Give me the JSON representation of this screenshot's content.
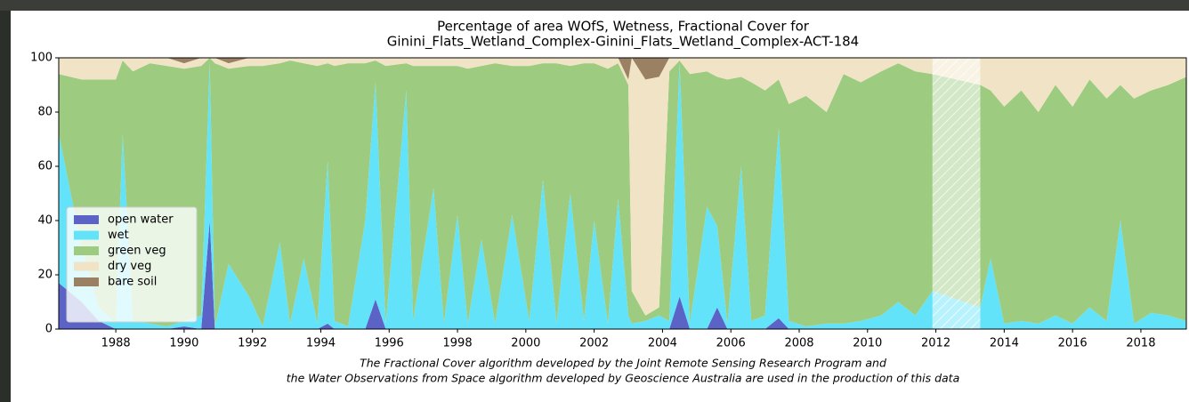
{
  "chart_data": {
    "type": "stacked_area",
    "title_lines": [
      "Percentage of area WOfS, Wetness, Fractional Cover for",
      "Ginini_Flats_Wetland_Complex-Ginini_Flats_Wetland_Complex-ACT-184"
    ],
    "note_lines": [
      "The Fractional Cover algorithm developed by the Joint Remote Sensing Research Program and",
      "the Water Observations from Space algorithm developed by Geoscience Australia are used in the production of this data"
    ],
    "x": [
      1986.33,
      1987.0,
      1987.5,
      1988.0,
      1988.2,
      1988.5,
      1989.0,
      1989.5,
      1990.0,
      1990.5,
      1990.75,
      1990.9,
      1991.3,
      1991.9,
      1992.3,
      1992.8,
      1993.1,
      1993.5,
      1993.9,
      1994.2,
      1994.4,
      1994.8,
      1995.3,
      1995.6,
      1995.9,
      1996.5,
      1996.7,
      1997.3,
      1997.6,
      1998.0,
      1998.3,
      1998.7,
      1999.1,
      1999.6,
      2000.1,
      2000.5,
      2000.9,
      2001.3,
      2001.7,
      2002.0,
      2002.4,
      2002.7,
      2003.0,
      2003.1,
      2003.5,
      2003.9,
      2004.2,
      2004.5,
      2004.8,
      2005.3,
      2005.6,
      2005.9,
      2006.3,
      2006.6,
      2007.0,
      2007.4,
      2007.7,
      2008.2,
      2008.8,
      2009.3,
      2009.8,
      2010.4,
      2010.9,
      2011.4,
      2011.9,
      2013.3,
      2013.6,
      2014.0,
      2014.5,
      2015.0,
      2015.5,
      2016.0,
      2016.5,
      2017.0,
      2017.4,
      2017.8,
      2018.3,
      2018.8,
      2019.33
    ],
    "series": [
      {
        "name": "open water",
        "color": "#5b63c6",
        "values": [
          17,
          10,
          3,
          0,
          0,
          0,
          0,
          0,
          1,
          0,
          40,
          0,
          0,
          0,
          0,
          0,
          0,
          0,
          0,
          2,
          0,
          0,
          0,
          11,
          0,
          0,
          0,
          0,
          0,
          0,
          0,
          0,
          0,
          0,
          0,
          0,
          0,
          0,
          0,
          0,
          0,
          0,
          0,
          0,
          0,
          0,
          0,
          12,
          0,
          0,
          8,
          0,
          0,
          0,
          0,
          4,
          0,
          0,
          0,
          0,
          0,
          0,
          0,
          0,
          0,
          0,
          0,
          0,
          0,
          0,
          0,
          0,
          0,
          0,
          0,
          0,
          0,
          0,
          0
        ]
      },
      {
        "name": "wet",
        "color": "#63e3fa",
        "values": [
          55,
          20,
          5,
          2,
          72,
          3,
          2,
          1,
          2,
          5,
          58,
          1,
          24,
          12,
          1,
          32,
          2,
          26,
          2,
          60,
          3,
          1,
          40,
          80,
          2,
          88,
          3,
          52,
          2,
          42,
          2,
          33,
          2,
          42,
          3,
          55,
          2,
          50,
          3,
          40,
          2,
          48,
          5,
          2,
          3,
          5,
          3,
          86,
          2,
          45,
          30,
          2,
          60,
          3,
          5,
          70,
          3,
          1,
          2,
          2,
          3,
          5,
          10,
          5,
          14,
          8,
          26,
          2,
          3,
          2,
          5,
          2,
          8,
          3,
          40,
          2,
          6,
          5,
          3
        ]
      },
      {
        "name": "green veg",
        "color": "#9dcc80",
        "values": [
          22,
          62,
          84,
          90,
          27,
          92,
          96,
          96,
          93,
          92,
          2,
          97,
          72,
          85,
          96,
          66,
          97,
          72,
          95,
          36,
          94,
          97,
          58,
          8,
          95,
          10,
          94,
          45,
          95,
          55,
          94,
          64,
          96,
          55,
          94,
          43,
          96,
          47,
          95,
          58,
          94,
          50,
          85,
          12,
          2,
          3,
          92,
          1,
          92,
          50,
          55,
          90,
          33,
          88,
          83,
          18,
          80,
          85,
          78,
          92,
          88,
          90,
          88,
          90,
          80,
          82,
          62,
          80,
          85,
          78,
          85,
          80,
          84,
          82,
          50,
          83,
          82,
          85,
          90
        ]
      },
      {
        "name": "dry veg",
        "color": "#f1e4c6",
        "values": [
          6,
          8,
          8,
          8,
          1,
          5,
          2,
          3,
          2,
          3,
          0,
          2,
          2,
          3,
          3,
          2,
          1,
          2,
          3,
          2,
          3,
          2,
          2,
          1,
          3,
          2,
          3,
          3,
          3,
          3,
          4,
          3,
          2,
          3,
          3,
          2,
          2,
          3,
          2,
          2,
          4,
          2,
          2,
          86,
          87,
          85,
          5,
          1,
          6,
          5,
          7,
          8,
          7,
          9,
          12,
          8,
          17,
          14,
          20,
          6,
          9,
          5,
          2,
          5,
          6,
          10,
          12,
          18,
          12,
          20,
          10,
          18,
          8,
          15,
          10,
          15,
          12,
          10,
          7
        ]
      },
      {
        "name": "bare soil",
        "color": "#9a8163",
        "values": [
          0,
          0,
          0,
          0,
          0,
          0,
          0,
          0,
          2,
          0,
          0,
          0,
          2,
          0,
          0,
          0,
          0,
          0,
          0,
          0,
          0,
          0,
          0,
          0,
          0,
          0,
          0,
          0,
          0,
          0,
          0,
          0,
          0,
          0,
          0,
          0,
          0,
          0,
          0,
          0,
          0,
          0,
          8,
          0,
          8,
          7,
          0,
          0,
          0,
          0,
          0,
          0,
          0,
          0,
          0,
          0,
          0,
          0,
          0,
          0,
          0,
          0,
          0,
          0,
          0,
          0,
          0,
          0,
          0,
          0,
          0,
          0,
          0,
          0,
          0,
          0,
          0,
          0,
          0
        ]
      }
    ],
    "shaded_span": [
      2011.9,
      2013.3
    ],
    "xlim": [
      1986.33,
      2019.33
    ],
    "xticks": [
      1988,
      1990,
      1992,
      1994,
      1996,
      1998,
      2000,
      2002,
      2004,
      2006,
      2008,
      2010,
      2012,
      2014,
      2016,
      2018
    ],
    "ylim": [
      0,
      100
    ],
    "yticks": [
      0,
      20,
      40,
      60,
      80,
      100
    ],
    "legend": "lower left"
  }
}
